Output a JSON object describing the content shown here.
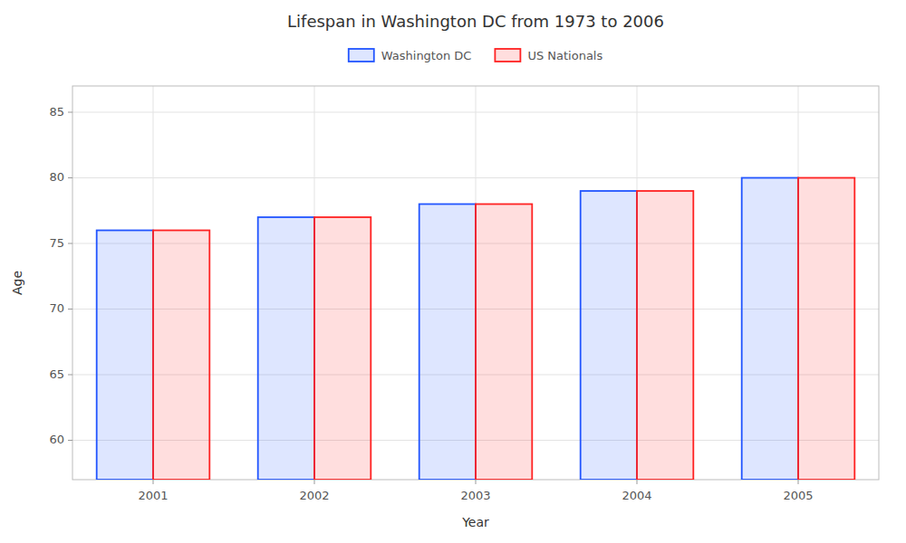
{
  "chart_data": {
    "type": "bar",
    "title": "Lifespan in Washington DC from 1973 to 2006",
    "x_label": "Year",
    "y_label": "Age",
    "categories": [
      "2001",
      "2002",
      "2003",
      "2004",
      "2005"
    ],
    "series": [
      {
        "name": "Washington DC",
        "color": "#2255ff",
        "values": [
          76,
          77,
          78,
          79,
          80
        ]
      },
      {
        "name": "US Nationals",
        "color": "#ff2222",
        "values": [
          76,
          77,
          78,
          79,
          80
        ]
      }
    ],
    "ylim": [
      57,
      87
    ],
    "yticks": [
      60,
      65,
      70,
      75,
      80,
      85
    ],
    "grid": true,
    "legend": "top"
  }
}
